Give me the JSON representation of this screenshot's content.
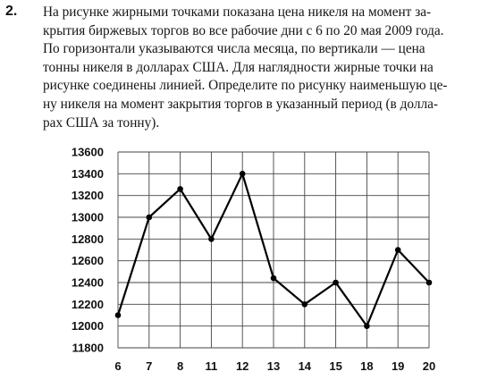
{
  "task": {
    "number": "2.",
    "lines": [
      "На рисунке жирными точками показана цена никеля на момент за-",
      "крытия биржевых торгов во все рабочие дни с 6 по 20 мая 2009 года.",
      "По горизонтали указываются числа месяца, по вертикали — цена",
      "тонны никеля в долларах США. Для наглядности жирные точки на",
      "рисунке соединены линией. Определите по рисунку наименьшую це-",
      "ну никеля на момент закрытия торгов в указанный период (в долла-",
      "рах США за тонну)."
    ]
  },
  "chart_data": {
    "type": "line",
    "categories": [
      "6",
      "7",
      "8",
      "11",
      "12",
      "13",
      "14",
      "15",
      "18",
      "19",
      "20"
    ],
    "values": [
      12100,
      13000,
      13260,
      12800,
      13400,
      12440,
      12200,
      12400,
      12000,
      12700,
      12400
    ],
    "yticks": [
      11800,
      12000,
      12200,
      12400,
      12600,
      12800,
      13000,
      13200,
      13400,
      13600
    ],
    "ylim": [
      11800,
      13600
    ],
    "grid": true,
    "line_color": "#000000",
    "grid_color": "#444444"
  }
}
